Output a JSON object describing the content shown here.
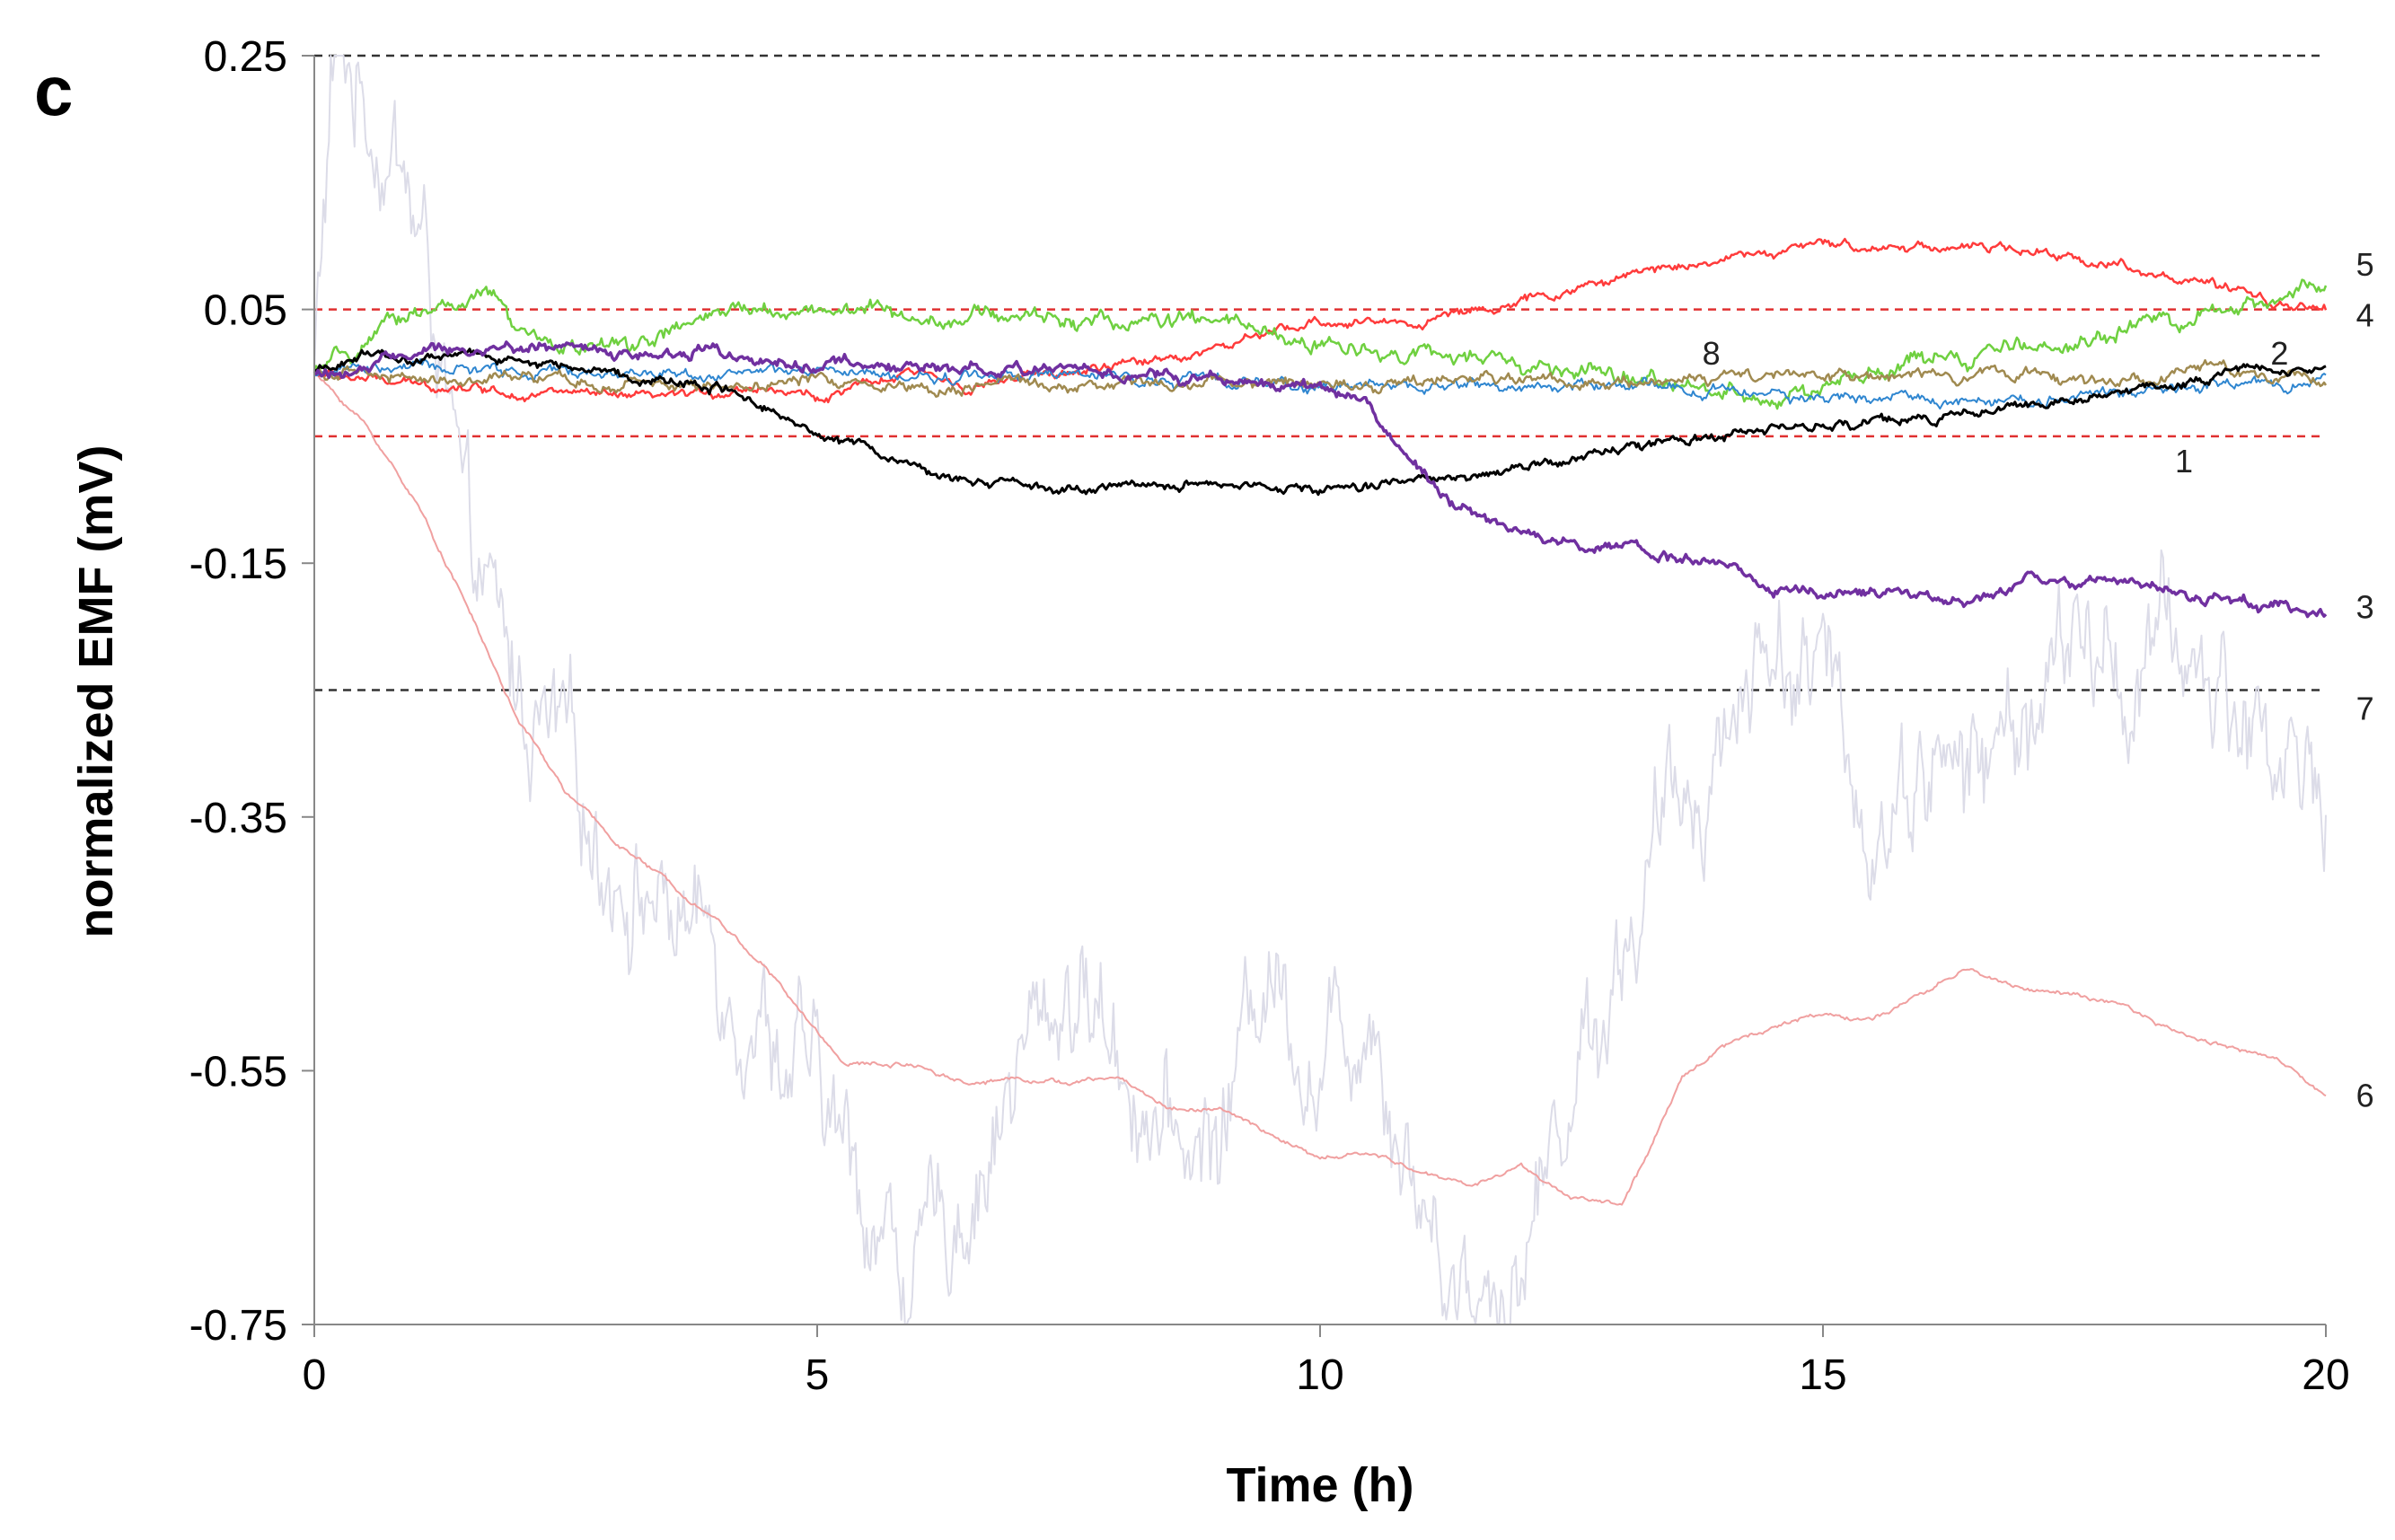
{
  "panel_label": "c",
  "chart_data": {
    "type": "line",
    "title": "",
    "xlabel": "Time (h)",
    "ylabel": "normalized EMF (mV)",
    "xlim": [
      0,
      20
    ],
    "ylim": [
      -0.75,
      0.25
    ],
    "x_ticks": [
      0,
      5,
      10,
      15,
      20
    ],
    "x_tick_labels": [
      "0",
      "5",
      "10",
      "15",
      "20"
    ],
    "y_ticks": [
      0.25,
      0.05,
      -0.15,
      -0.35,
      -0.55,
      -0.75
    ],
    "y_tick_labels": [
      "0.25",
      "0.05",
      "-0.15",
      "-0.35",
      "-0.55",
      "-0.75"
    ],
    "grid": false,
    "reference_lines": [
      {
        "y": 0.25,
        "color": "#333333",
        "style": "dashed"
      },
      {
        "y": 0.05,
        "color": "#e03030",
        "style": "dashed"
      },
      {
        "y": -0.05,
        "color": "#e03030",
        "style": "dashed"
      },
      {
        "y": -0.25,
        "color": "#333333",
        "style": "dashed"
      }
    ],
    "series": [
      {
        "label": "7",
        "color": "#dcdce8",
        "width": 2,
        "noise": 0.055,
        "label_pos": [
          20.3,
          -0.265
        ],
        "points": [
          [
            0,
            0.0
          ],
          [
            0.2,
            0.25
          ],
          [
            0.5,
            0.22
          ],
          [
            0.8,
            0.18
          ],
          [
            1.2,
            0.05
          ],
          [
            1.5,
            -0.15
          ],
          [
            2,
            -0.25
          ],
          [
            2.5,
            -0.32
          ],
          [
            3,
            -0.38
          ],
          [
            3.5,
            -0.42
          ],
          [
            4,
            -0.45
          ],
          [
            4.5,
            -0.5
          ],
          [
            5,
            -0.58
          ],
          [
            5.5,
            -0.65
          ],
          [
            6,
            -0.72
          ],
          [
            6.5,
            -0.64
          ],
          [
            7,
            -0.55
          ],
          [
            7.5,
            -0.48
          ],
          [
            8,
            -0.52
          ],
          [
            8.5,
            -0.62
          ],
          [
            9,
            -0.6
          ],
          [
            9.5,
            -0.45
          ],
          [
            10,
            -0.55
          ],
          [
            10.5,
            -0.48
          ],
          [
            11,
            -0.65
          ],
          [
            11.5,
            -0.72
          ],
          [
            12,
            -0.7
          ],
          [
            12.5,
            -0.55
          ],
          [
            13,
            -0.45
          ],
          [
            13.5,
            -0.35
          ],
          [
            14,
            -0.28
          ],
          [
            14.5,
            -0.2
          ],
          [
            15,
            -0.25
          ],
          [
            15.5,
            -0.35
          ],
          [
            16,
            -0.3
          ],
          [
            16.5,
            -0.32
          ],
          [
            17,
            -0.27
          ],
          [
            17.5,
            -0.22
          ],
          [
            18,
            -0.24
          ],
          [
            18.5,
            -0.22
          ],
          [
            19,
            -0.25
          ],
          [
            19.5,
            -0.3
          ],
          [
            20,
            -0.32
          ]
        ]
      },
      {
        "label": "6",
        "color": "#f0a0a0",
        "width": 2,
        "noise": 0.002,
        "label_pos": [
          20.3,
          -0.57
        ],
        "points": [
          [
            0,
            0.0
          ],
          [
            0.5,
            -0.04
          ],
          [
            1,
            -0.1
          ],
          [
            1.5,
            -0.18
          ],
          [
            2,
            -0.27
          ],
          [
            2.5,
            -0.33
          ],
          [
            3,
            -0.37
          ],
          [
            3.5,
            -0.4
          ],
          [
            4,
            -0.43
          ],
          [
            4.5,
            -0.47
          ],
          [
            5,
            -0.52
          ],
          [
            5.3,
            -0.545
          ],
          [
            6,
            -0.545
          ],
          [
            6.5,
            -0.56
          ],
          [
            7,
            -0.555
          ],
          [
            7.5,
            -0.56
          ],
          [
            8,
            -0.555
          ],
          [
            8.5,
            -0.58
          ],
          [
            9,
            -0.58
          ],
          [
            9.5,
            -0.6
          ],
          [
            10,
            -0.62
          ],
          [
            10.5,
            -0.615
          ],
          [
            11,
            -0.63
          ],
          [
            11.5,
            -0.64
          ],
          [
            12,
            -0.625
          ],
          [
            12.5,
            -0.65
          ],
          [
            13,
            -0.655
          ],
          [
            13.3,
            -0.61
          ],
          [
            13.6,
            -0.555
          ],
          [
            14,
            -0.53
          ],
          [
            14.5,
            -0.515
          ],
          [
            15,
            -0.505
          ],
          [
            15.5,
            -0.51
          ],
          [
            16,
            -0.49
          ],
          [
            16.4,
            -0.47
          ],
          [
            17,
            -0.485
          ],
          [
            17.5,
            -0.49
          ],
          [
            18,
            -0.5
          ],
          [
            18.5,
            -0.52
          ],
          [
            19,
            -0.53
          ],
          [
            19.5,
            -0.54
          ],
          [
            20,
            -0.57
          ]
        ]
      },
      {
        "label": "5",
        "color": "#ff3b3b",
        "width": 2.5,
        "noise": 0.004,
        "label_pos": [
          20.3,
          0.085
        ],
        "points": [
          [
            0,
            0.0
          ],
          [
            0.5,
            -0.005
          ],
          [
            1,
            -0.01
          ],
          [
            1.5,
            -0.01
          ],
          [
            2,
            -0.015
          ],
          [
            2.5,
            -0.015
          ],
          [
            3,
            -0.02
          ],
          [
            3.5,
            -0.02
          ],
          [
            4,
            -0.015
          ],
          [
            4.5,
            -0.01
          ],
          [
            5,
            -0.02
          ],
          [
            5.5,
            -0.01
          ],
          [
            6,
            0.0
          ],
          [
            6.5,
            -0.01
          ],
          [
            7,
            -0.005
          ],
          [
            8,
            0.005
          ],
          [
            9,
            0.02
          ],
          [
            10,
            0.04
          ],
          [
            11,
            0.04
          ],
          [
            11.5,
            0.05
          ],
          [
            12,
            0.055
          ],
          [
            12.5,
            0.065
          ],
          [
            13,
            0.075
          ],
          [
            13.5,
            0.085
          ],
          [
            14,
            0.09
          ],
          [
            14.5,
            0.095
          ],
          [
            15,
            0.1
          ],
          [
            15.5,
            0.1
          ],
          [
            16,
            0.1
          ],
          [
            16.5,
            0.1
          ],
          [
            17,
            0.095
          ],
          [
            17.5,
            0.09
          ],
          [
            18,
            0.085
          ],
          [
            18.5,
            0.075
          ],
          [
            19,
            0.065
          ],
          [
            19.5,
            0.055
          ],
          [
            20,
            0.05
          ]
        ]
      },
      {
        "label": "4",
        "color": "#6fd040",
        "width": 2.5,
        "noise": 0.007,
        "label_pos": [
          20.3,
          0.045
        ],
        "points": [
          [
            0,
            0.0
          ],
          [
            0.5,
            0.02
          ],
          [
            1,
            0.05
          ],
          [
            1.5,
            0.055
          ],
          [
            1.8,
            0.06
          ],
          [
            2,
            0.03
          ],
          [
            2.5,
            0.02
          ],
          [
            3,
            0.02
          ],
          [
            3.5,
            0.03
          ],
          [
            4,
            0.045
          ],
          [
            4.5,
            0.05
          ],
          [
            5,
            0.05
          ],
          [
            5.5,
            0.05
          ],
          [
            6,
            0.045
          ],
          [
            7,
            0.045
          ],
          [
            8,
            0.04
          ],
          [
            9,
            0.04
          ],
          [
            9.5,
            0.03
          ],
          [
            10,
            0.02
          ],
          [
            10.5,
            0.02
          ],
          [
            11,
            0.015
          ],
          [
            11.5,
            0.01
          ],
          [
            12,
            0.005
          ],
          [
            12.5,
            0.0
          ],
          [
            13,
            -0.005
          ],
          [
            13.5,
            -0.01
          ],
          [
            14,
            -0.01
          ],
          [
            14.5,
            -0.02
          ],
          [
            15,
            -0.015
          ],
          [
            15.5,
            0.0
          ],
          [
            16,
            0.01
          ],
          [
            16.5,
            0.01
          ],
          [
            17,
            0.02
          ],
          [
            17.5,
            0.025
          ],
          [
            18,
            0.035
          ],
          [
            18.5,
            0.04
          ],
          [
            19,
            0.045
          ],
          [
            19.5,
            0.06
          ],
          [
            20,
            0.07
          ]
        ]
      },
      {
        "label": "2",
        "color": "#2f86d0",
        "width": 2,
        "noise": 0.005,
        "label_pos": [
          19.45,
          0.015
        ],
        "points": [
          [
            0,
            0.0
          ],
          [
            1,
            0.005
          ],
          [
            2,
            0.0
          ],
          [
            3,
            0.0
          ],
          [
            4,
            0.0
          ],
          [
            5,
            0.0
          ],
          [
            6,
            -0.005
          ],
          [
            7,
            0.0
          ],
          [
            8,
            -0.005
          ],
          [
            9,
            -0.005
          ],
          [
            10,
            -0.01
          ],
          [
            11,
            -0.01
          ],
          [
            12,
            -0.01
          ],
          [
            13,
            -0.01
          ],
          [
            14,
            -0.015
          ],
          [
            15,
            -0.02
          ],
          [
            16,
            -0.02
          ],
          [
            17,
            -0.02
          ],
          [
            18,
            -0.015
          ],
          [
            19,
            -0.01
          ],
          [
            20,
            -0.005
          ]
        ]
      },
      {
        "label": "8",
        "color": "#a08a50",
        "width": 2.5,
        "noise": 0.005,
        "label_pos": [
          13.8,
          0.015
        ],
        "points": [
          [
            0,
            0.0
          ],
          [
            1,
            -0.005
          ],
          [
            2,
            -0.005
          ],
          [
            3,
            -0.01
          ],
          [
            4,
            -0.01
          ],
          [
            5,
            -0.005
          ],
          [
            6,
            -0.01
          ],
          [
            7,
            -0.01
          ],
          [
            8,
            -0.01
          ],
          [
            9,
            -0.005
          ],
          [
            10,
            -0.01
          ],
          [
            11,
            -0.005
          ],
          [
            12,
            -0.005
          ],
          [
            13,
            -0.005
          ],
          [
            14,
            -0.005
          ],
          [
            15,
            -0.005
          ],
          [
            16,
            -0.005
          ],
          [
            17,
            0.0
          ],
          [
            18,
            -0.005
          ],
          [
            19,
            0.0
          ],
          [
            20,
            -0.005
          ]
        ]
      },
      {
        "label": "1",
        "color": "#000000",
        "width": 3,
        "noise": 0.004,
        "label_pos": [
          18.5,
          -0.07
        ],
        "points": [
          [
            0,
            0.0
          ],
          [
            0.5,
            0.015
          ],
          [
            1,
            0.01
          ],
          [
            1.5,
            0.015
          ],
          [
            2,
            0.01
          ],
          [
            2.5,
            0.005
          ],
          [
            3,
            0.0
          ],
          [
            3.5,
            -0.005
          ],
          [
            4,
            -0.01
          ],
          [
            4.5,
            -0.025
          ],
          [
            5,
            -0.045
          ],
          [
            5.5,
            -0.06
          ],
          [
            6,
            -0.075
          ],
          [
            6.5,
            -0.085
          ],
          [
            7,
            -0.09
          ],
          [
            7.5,
            -0.095
          ],
          [
            8,
            -0.09
          ],
          [
            8.5,
            -0.09
          ],
          [
            9,
            -0.09
          ],
          [
            9.5,
            -0.09
          ],
          [
            10,
            -0.095
          ],
          [
            10.5,
            -0.09
          ],
          [
            11,
            -0.08
          ],
          [
            11.5,
            -0.08
          ],
          [
            12,
            -0.07
          ],
          [
            12.5,
            -0.07
          ],
          [
            13,
            -0.06
          ],
          [
            13.5,
            -0.055
          ],
          [
            14,
            -0.05
          ],
          [
            14.5,
            -0.045
          ],
          [
            15,
            -0.04
          ],
          [
            15.5,
            -0.04
          ],
          [
            16,
            -0.035
          ],
          [
            16.5,
            -0.03
          ],
          [
            17,
            -0.025
          ],
          [
            17.5,
            -0.02
          ],
          [
            18,
            -0.015
          ],
          [
            18.5,
            -0.01
          ],
          [
            19,
            0.0
          ],
          [
            19.5,
            0.005
          ],
          [
            20,
            0.005
          ]
        ]
      },
      {
        "label": "3",
        "color": "#7030a0",
        "width": 3.5,
        "noise": 0.005,
        "label_pos": [
          20.3,
          -0.185
        ],
        "points": [
          [
            0,
            0.0
          ],
          [
            0.5,
            0.0
          ],
          [
            1,
            0.02
          ],
          [
            1.5,
            0.015
          ],
          [
            2,
            0.02
          ],
          [
            2.5,
            0.02
          ],
          [
            3,
            0.015
          ],
          [
            3.5,
            0.015
          ],
          [
            4,
            0.02
          ],
          [
            4.5,
            0.01
          ],
          [
            5,
            0.005
          ],
          [
            6,
            0.005
          ],
          [
            7,
            0.005
          ],
          [
            8,
            0.0
          ],
          [
            9,
            -0.005
          ],
          [
            9.5,
            -0.01
          ],
          [
            10,
            -0.01
          ],
          [
            10.4,
            -0.025
          ],
          [
            10.8,
            -0.06
          ],
          [
            11.2,
            -0.095
          ],
          [
            11.8,
            -0.12
          ],
          [
            12.5,
            -0.135
          ],
          [
            13,
            -0.14
          ],
          [
            13.5,
            -0.145
          ],
          [
            14,
            -0.15
          ],
          [
            14.5,
            -0.17
          ],
          [
            15,
            -0.175
          ],
          [
            15.5,
            -0.17
          ],
          [
            16,
            -0.18
          ],
          [
            16.5,
            -0.175
          ],
          [
            17,
            -0.165
          ],
          [
            17.5,
            -0.17
          ],
          [
            18,
            -0.165
          ],
          [
            18.5,
            -0.175
          ],
          [
            19,
            -0.18
          ],
          [
            19.5,
            -0.185
          ],
          [
            20,
            -0.19
          ]
        ]
      }
    ]
  }
}
